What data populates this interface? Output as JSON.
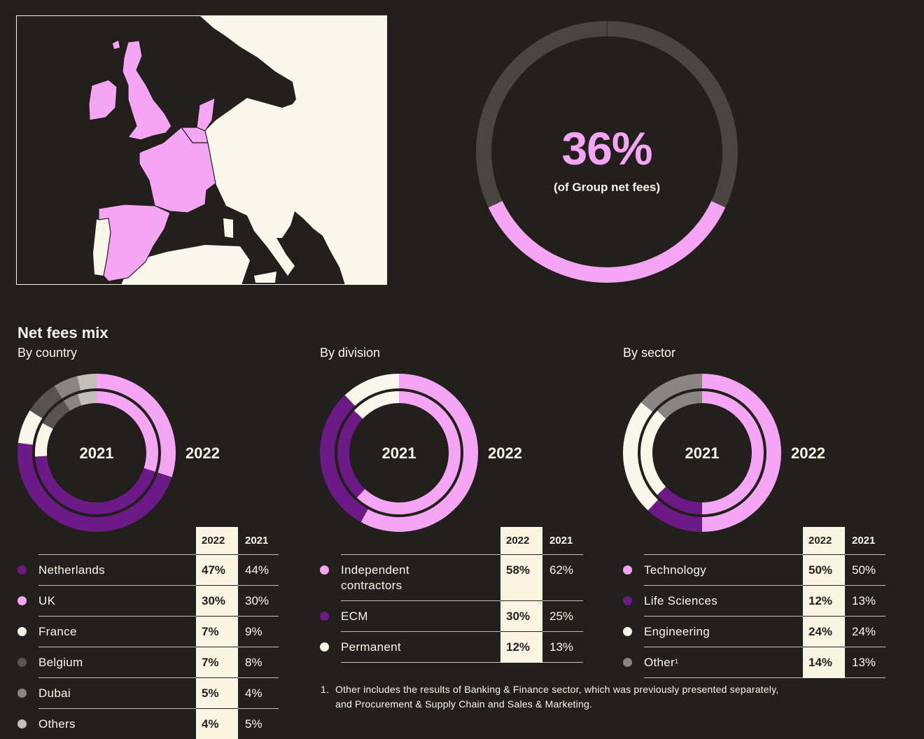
{
  "colors": {
    "background": "#231f1c",
    "light_pink": "#f4a6f4",
    "purple": "#6b1a87",
    "cream": "#faf6ea",
    "dark_grey": "#58534e",
    "grey": "#8a8580",
    "light_grey": "#c2beb8",
    "ring_track": "#4a4541"
  },
  "headline": {
    "value": "36%",
    "caption": "(of Group net fees)",
    "fraction": 0.36
  },
  "section_title": "Net fees mix",
  "table_headers": {
    "y2022": "2022",
    "y2021": "2021"
  },
  "chart_data": [
    {
      "type": "pie",
      "subtitle": "By country",
      "inner_label": "2021",
      "outer_label": "2022",
      "categories": [
        "Netherlands",
        "UK",
        "France",
        "Belgium",
        "Dubai",
        "Others"
      ],
      "category_colors": [
        "#6b1a87",
        "#f4a6f4",
        "#faf6ea",
        "#58534e",
        "#8a8580",
        "#c2beb8"
      ],
      "series": [
        {
          "name": "2022",
          "display": [
            "47%",
            "30%",
            "7%",
            "7%",
            "5%",
            "4%"
          ],
          "values": [
            47,
            30,
            7,
            7,
            5,
            4
          ]
        },
        {
          "name": "2021",
          "display": [
            "44%",
            "30%",
            "9%",
            "8%",
            "4%",
            "5%"
          ],
          "values": [
            44,
            30,
            9,
            8,
            4,
            5
          ]
        }
      ],
      "ring_order": [
        "UK",
        "Netherlands",
        "France",
        "Belgium",
        "Dubai",
        "Others"
      ]
    },
    {
      "type": "pie",
      "subtitle": "By division",
      "inner_label": "2021",
      "outer_label": "2022",
      "categories": [
        "Independent contractors",
        "ECM",
        "Permanent"
      ],
      "category_colors": [
        "#f4a6f4",
        "#6b1a87",
        "#faf6ea"
      ],
      "series": [
        {
          "name": "2022",
          "display": [
            "58%",
            "30%",
            "12%"
          ],
          "values": [
            58,
            30,
            12
          ]
        },
        {
          "name": "2021",
          "display": [
            "62%",
            "25%",
            "13%"
          ],
          "values": [
            62,
            25,
            13
          ]
        }
      ],
      "ring_order": [
        "Independent contractors",
        "ECM",
        "Permanent"
      ]
    },
    {
      "type": "pie",
      "subtitle": "By sector",
      "inner_label": "2021",
      "outer_label": "2022",
      "categories": [
        "Technology",
        "Life Sciences",
        "Engineering",
        "Other"
      ],
      "category_colors": [
        "#f4a6f4",
        "#6b1a87",
        "#faf6ea",
        "#8a8580"
      ],
      "footnote_marks": [
        "",
        "",
        "",
        "1"
      ],
      "series": [
        {
          "name": "2022",
          "display": [
            "50%",
            "12%",
            "24%",
            "14%"
          ],
          "values": [
            50,
            12,
            24,
            14
          ]
        },
        {
          "name": "2021",
          "display": [
            "50%",
            "13%",
            "24%",
            "13%"
          ],
          "values": [
            50,
            13,
            24,
            13
          ]
        }
      ],
      "ring_order": [
        "Technology",
        "Life Sciences",
        "Engineering",
        "Other"
      ]
    }
  ],
  "footnote": {
    "number": "1.",
    "line1": "Other includes the results of Banking & Finance sector, which was previously presented separately,",
    "line2": "and Procurement & Supply Chain and Sales & Marketing."
  }
}
